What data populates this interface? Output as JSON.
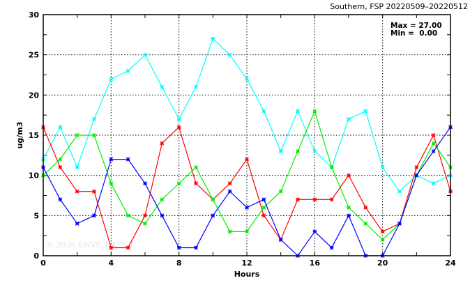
{
  "chart_data": {
    "type": "line",
    "title": "Southern, FSP 20220509–20220512",
    "xlabel": "Hours",
    "ylabel": "ug/m3",
    "xlim": [
      0,
      24
    ],
    "ylim": [
      0,
      30
    ],
    "xticks": [
      "0",
      "4",
      "8",
      "12",
      "16",
      "20",
      "24"
    ],
    "yticks": [
      "0",
      "5",
      "10",
      "15",
      "20",
      "25",
      "30"
    ],
    "grid": true,
    "annotation": {
      "max": "Max = 27.00",
      "min": "Min =  0.00"
    },
    "watermark": "© 2026  ENVF, HKUST",
    "x": [
      0,
      1,
      2,
      3,
      4,
      5,
      6,
      7,
      8,
      9,
      10,
      11,
      12,
      13,
      14,
      15,
      16,
      17,
      18,
      19,
      20,
      21,
      22,
      23,
      24
    ],
    "series": [
      {
        "name": "cyan",
        "color": "#00ffff",
        "values": [
          12,
          16,
          11,
          17,
          22,
          23,
          25,
          21,
          17,
          21,
          27,
          25,
          22,
          18,
          13,
          18,
          13,
          11,
          17,
          18,
          11,
          8,
          10,
          9,
          10
        ]
      },
      {
        "name": "red",
        "color": "#ff0000",
        "values": [
          16,
          11,
          8,
          8,
          1,
          1,
          5,
          14,
          16,
          9,
          7,
          9,
          12,
          5,
          2,
          7,
          7,
          7,
          10,
          6,
          3,
          4,
          11,
          15,
          8
        ]
      },
      {
        "name": "green",
        "color": "#00ee00",
        "values": [
          10,
          12,
          15,
          15,
          9,
          5,
          4,
          7,
          9,
          11,
          7,
          3,
          3,
          6,
          8,
          13,
          18,
          11,
          6,
          4,
          2,
          4,
          10,
          14,
          11
        ]
      },
      {
        "name": "blue",
        "color": "#0000ff",
        "values": [
          11,
          7,
          4,
          5,
          12,
          12,
          9,
          5,
          1,
          1,
          5,
          8,
          6,
          7,
          2,
          0,
          3,
          1,
          5,
          0,
          0,
          4,
          10,
          13,
          16
        ]
      }
    ]
  }
}
